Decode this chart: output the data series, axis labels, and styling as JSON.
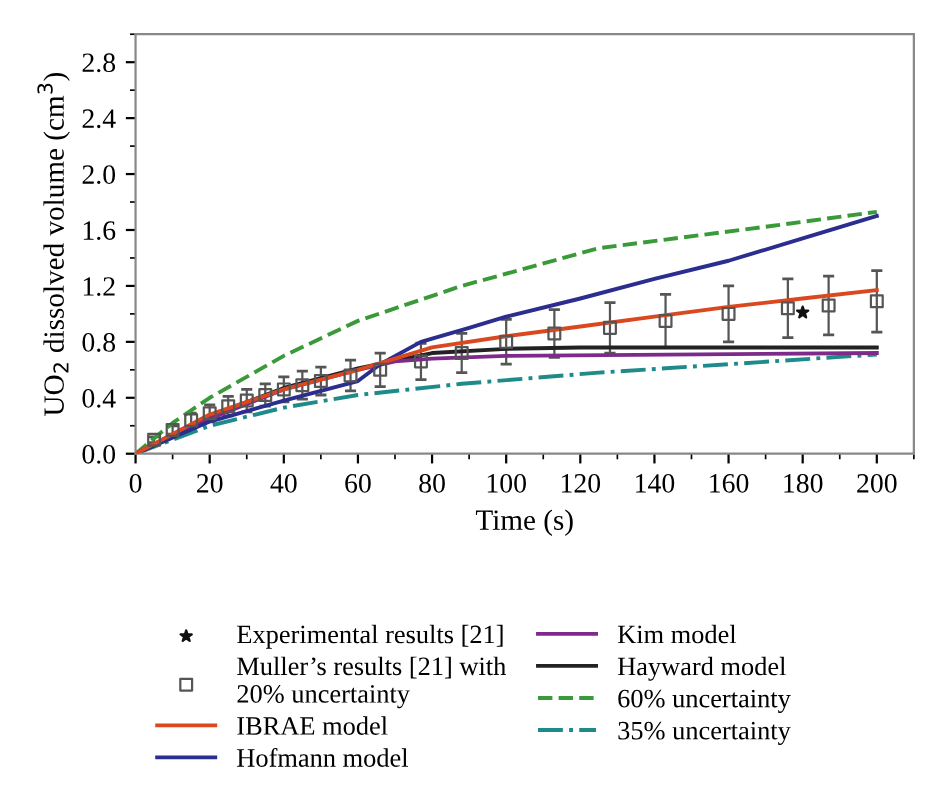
{
  "chart_data": {
    "type": "line",
    "xlabel": "Time (s)",
    "ylabel": "UO$_{2}$ dissolved volume (cm$^{3}$)",
    "xlim": [
      0,
      210
    ],
    "ylim": [
      0,
      3.0
    ],
    "xticks": [
      0,
      20,
      40,
      60,
      80,
      100,
      120,
      140,
      160,
      180,
      200
    ],
    "yticks": [
      {
        "value": 0,
        "label": "0.0"
      },
      0.4,
      0.8,
      1.2,
      1.6,
      {
        "value": 2,
        "label": "2.0"
      },
      2.4,
      2.8
    ],
    "grid": false,
    "legend": "bottom",
    "marker": "none",
    "line_style": "solid",
    "series": [
      {
        "name": "Experimental results [21]",
        "type": "scatter",
        "marker": "star",
        "color": "#111111",
        "x": [
          180
        ],
        "values": [
          1.01
        ]
      },
      {
        "name": "Muller’s results [21] with\n20% uncertainty",
        "type": "scatter",
        "marker": "square",
        "color": "#555555",
        "x": [
          5,
          10,
          15,
          20,
          25,
          30,
          35,
          40,
          45,
          50,
          58,
          66,
          77,
          88,
          100,
          113,
          128,
          143,
          160,
          176,
          187,
          200
        ],
        "values": [
          0.1,
          0.17,
          0.24,
          0.29,
          0.34,
          0.38,
          0.42,
          0.46,
          0.49,
          0.52,
          0.56,
          0.6,
          0.66,
          0.72,
          0.8,
          0.86,
          0.9,
          0.95,
          1.0,
          1.04,
          1.06,
          1.09
        ],
        "errors": [
          0.02,
          0.03,
          0.05,
          0.06,
          0.07,
          0.08,
          0.08,
          0.09,
          0.1,
          0.1,
          0.11,
          0.12,
          0.13,
          0.14,
          0.16,
          0.17,
          0.18,
          0.19,
          0.2,
          0.21,
          0.21,
          0.22
        ]
      },
      {
        "name": "IBRAE model",
        "color": "#d9481f",
        "x": [
          0,
          20,
          40,
          60,
          70,
          80,
          100,
          120,
          140,
          160,
          180,
          200
        ],
        "values": [
          0,
          0.28,
          0.46,
          0.6,
          0.68,
          0.76,
          0.84,
          0.91,
          0.98,
          1.05,
          1.11,
          1.17
        ]
      },
      {
        "name": "Hofmann model",
        "color": "#2b2d8f",
        "x": [
          0,
          20,
          40,
          60,
          66,
          77,
          90,
          100,
          120,
          140,
          160,
          180,
          200
        ],
        "values": [
          0,
          0.23,
          0.38,
          0.52,
          0.64,
          0.8,
          0.9,
          0.98,
          1.11,
          1.25,
          1.38,
          1.54,
          1.7
        ]
      },
      {
        "name": "Kim model",
        "color": "#7d2a8a",
        "x": [
          0,
          20,
          40,
          60,
          70,
          80,
          100,
          200
        ],
        "values": [
          0,
          0.25,
          0.46,
          0.6,
          0.66,
          0.68,
          0.7,
          0.72
        ]
      },
      {
        "name": "Hayward model",
        "color": "#222222",
        "x": [
          0,
          20,
          40,
          60,
          80,
          100,
          120,
          200
        ],
        "values": [
          0,
          0.27,
          0.47,
          0.61,
          0.72,
          0.75,
          0.76,
          0.76
        ]
      },
      {
        "name": "60% uncertainty",
        "color": "#3a9a3a",
        "line_style": "dashed",
        "x": [
          0,
          10,
          20,
          40,
          60,
          88,
          125,
          172,
          200
        ],
        "values": [
          0,
          0.22,
          0.4,
          0.7,
          0.95,
          1.2,
          1.47,
          1.63,
          1.73
        ]
      },
      {
        "name": "35% uncertainty",
        "color": "#1f8a8a",
        "line_style": "dashdot",
        "x": [
          0,
          20,
          40,
          60,
          88,
          125,
          160,
          200
        ],
        "values": [
          0,
          0.2,
          0.33,
          0.42,
          0.5,
          0.58,
          0.64,
          0.71
        ]
      }
    ]
  }
}
